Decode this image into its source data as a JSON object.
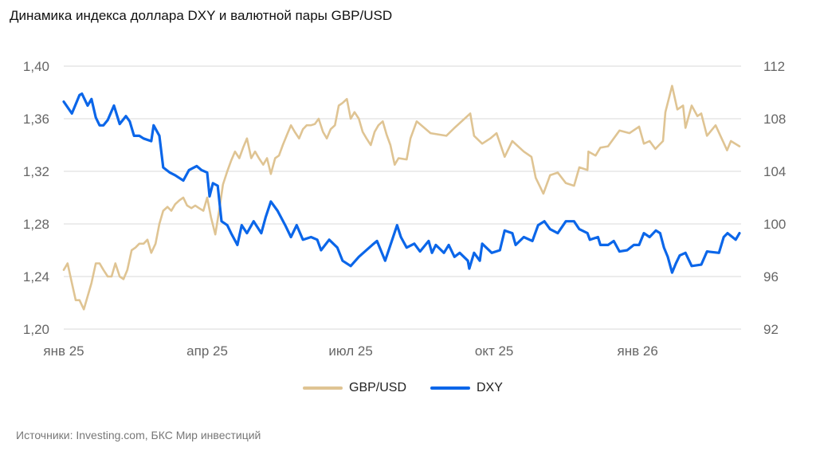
{
  "chart_data": {
    "type": "line",
    "title": "Динамика индекса доллара DXY и валютной пары GBP/USD",
    "x_unit": "months since January 2025",
    "x_ticks": [
      {
        "m": 0,
        "label": "янв 25"
      },
      {
        "m": 3,
        "label": "апр 25"
      },
      {
        "m": 6,
        "label": "июл 25"
      },
      {
        "m": 9,
        "label": "окт 25"
      },
      {
        "m": 12,
        "label": "янв 26"
      }
    ],
    "xlim": [
      0,
      14.13
    ],
    "y_left": {
      "ylim": [
        1.2,
        1.4
      ],
      "ticks": [
        "1,20",
        "1,24",
        "1,28",
        "1,32",
        "1,36",
        "1,40"
      ],
      "tick_values": [
        1.2,
        1.24,
        1.28,
        1.32,
        1.36,
        1.4
      ]
    },
    "y_right": {
      "ylim": [
        92,
        112
      ],
      "ticks": [
        "92",
        "96",
        "100",
        "104",
        "108",
        "112"
      ],
      "tick_values": [
        92,
        96,
        100,
        104,
        108,
        112
      ]
    },
    "grid": true,
    "legend_placement": "bottom-center",
    "series": [
      {
        "name": "GBP/USD",
        "axis": "left",
        "color": "#dfc493",
        "points": [
          [
            0,
            1.245
          ],
          [
            0.08,
            1.25
          ],
          [
            0.17,
            1.235
          ],
          [
            0.25,
            1.222
          ],
          [
            0.33,
            1.222
          ],
          [
            0.42,
            1.215
          ],
          [
            0.5,
            1.225
          ],
          [
            0.58,
            1.235
          ],
          [
            0.67,
            1.25
          ],
          [
            0.75,
            1.25
          ],
          [
            0.83,
            1.245
          ],
          [
            0.92,
            1.24
          ],
          [
            1,
            1.24
          ],
          [
            1.08,
            1.25
          ],
          [
            1.17,
            1.24
          ],
          [
            1.25,
            1.238
          ],
          [
            1.33,
            1.245
          ],
          [
            1.42,
            1.26
          ],
          [
            1.5,
            1.262
          ],
          [
            1.58,
            1.265
          ],
          [
            1.67,
            1.265
          ],
          [
            1.75,
            1.268
          ],
          [
            1.83,
            1.258
          ],
          [
            1.92,
            1.265
          ],
          [
            2,
            1.28
          ],
          [
            2.08,
            1.29
          ],
          [
            2.17,
            1.293
          ],
          [
            2.25,
            1.29
          ],
          [
            2.33,
            1.295
          ],
          [
            2.42,
            1.298
          ],
          [
            2.5,
            1.3
          ],
          [
            2.58,
            1.294
          ],
          [
            2.67,
            1.292
          ],
          [
            2.75,
            1.294
          ],
          [
            2.83,
            1.292
          ],
          [
            2.92,
            1.29
          ],
          [
            3,
            1.3
          ],
          [
            3.08,
            1.285
          ],
          [
            3.17,
            1.272
          ],
          [
            3.25,
            1.29
          ],
          [
            3.33,
            1.31
          ],
          [
            3.42,
            1.32
          ],
          [
            3.5,
            1.328
          ],
          [
            3.58,
            1.335
          ],
          [
            3.67,
            1.33
          ],
          [
            3.75,
            1.338
          ],
          [
            3.83,
            1.345
          ],
          [
            3.92,
            1.33
          ],
          [
            4,
            1.335
          ],
          [
            4.08,
            1.33
          ],
          [
            4.17,
            1.325
          ],
          [
            4.25,
            1.33
          ],
          [
            4.33,
            1.318
          ],
          [
            4.42,
            1.33
          ],
          [
            4.5,
            1.332
          ],
          [
            4.58,
            1.34
          ],
          [
            4.67,
            1.348
          ],
          [
            4.75,
            1.355
          ],
          [
            4.83,
            1.35
          ],
          [
            4.92,
            1.345
          ],
          [
            5,
            1.352
          ],
          [
            5.08,
            1.355
          ],
          [
            5.17,
            1.355
          ],
          [
            5.25,
            1.356
          ],
          [
            5.33,
            1.36
          ],
          [
            5.42,
            1.35
          ],
          [
            5.5,
            1.345
          ],
          [
            5.58,
            1.352
          ],
          [
            5.67,
            1.355
          ],
          [
            5.75,
            1.37
          ],
          [
            5.83,
            1.372
          ],
          [
            5.92,
            1.375
          ],
          [
            6,
            1.36
          ],
          [
            6.08,
            1.365
          ],
          [
            6.17,
            1.36
          ],
          [
            6.25,
            1.35
          ],
          [
            6.33,
            1.345
          ],
          [
            6.42,
            1.34
          ],
          [
            6.5,
            1.35
          ],
          [
            6.58,
            1.355
          ],
          [
            6.67,
            1.358
          ],
          [
            6.75,
            1.348
          ],
          [
            6.83,
            1.34
          ],
          [
            6.92,
            1.325
          ],
          [
            7,
            1.33
          ],
          [
            7.17,
            1.329
          ],
          [
            7.25,
            1.345
          ],
          [
            7.38,
            1.358
          ],
          [
            7.67,
            1.349
          ],
          [
            8,
            1.347
          ],
          [
            8.17,
            1.353
          ],
          [
            8.5,
            1.364
          ],
          [
            8.58,
            1.347
          ],
          [
            8.75,
            1.341
          ],
          [
            8.92,
            1.345
          ],
          [
            9.05,
            1.349
          ],
          [
            9.22,
            1.331
          ],
          [
            9.38,
            1.343
          ],
          [
            9.62,
            1.335
          ],
          [
            9.78,
            1.331
          ],
          [
            9.87,
            1.315
          ],
          [
            10.03,
            1.303
          ],
          [
            10.17,
            1.317
          ],
          [
            10.33,
            1.319
          ],
          [
            10.5,
            1.311
          ],
          [
            10.67,
            1.309
          ],
          [
            10.78,
            1.323
          ],
          [
            10.95,
            1.321
          ],
          [
            10.97,
            1.335
          ],
          [
            11.12,
            1.332
          ],
          [
            11.22,
            1.338
          ],
          [
            11.38,
            1.339
          ],
          [
            11.62,
            1.351
          ],
          [
            11.83,
            1.349
          ],
          [
            12.03,
            1.354
          ],
          [
            12.13,
            1.341
          ],
          [
            12.25,
            1.343
          ],
          [
            12.37,
            1.337
          ],
          [
            12.53,
            1.343
          ],
          [
            12.58,
            1.365
          ],
          [
            12.72,
            1.385
          ],
          [
            12.83,
            1.367
          ],
          [
            12.95,
            1.37
          ],
          [
            13,
            1.353
          ],
          [
            13.13,
            1.37
          ],
          [
            13.25,
            1.362
          ],
          [
            13.33,
            1.364
          ],
          [
            13.45,
            1.347
          ],
          [
            13.63,
            1.355
          ],
          [
            13.87,
            1.336
          ],
          [
            13.95,
            1.343
          ],
          [
            14.13,
            1.339
          ]
        ]
      },
      {
        "name": "DXY",
        "axis": "right",
        "color": "#0b66e9",
        "points": [
          [
            0,
            109.3
          ],
          [
            0.17,
            108.4
          ],
          [
            0.33,
            109.8
          ],
          [
            0.38,
            109.9
          ],
          [
            0.5,
            109.0
          ],
          [
            0.58,
            109.5
          ],
          [
            0.67,
            108.1
          ],
          [
            0.75,
            107.5
          ],
          [
            0.83,
            107.5
          ],
          [
            0.92,
            107.9
          ],
          [
            1.05,
            109.0
          ],
          [
            1.17,
            107.6
          ],
          [
            1.3,
            108.2
          ],
          [
            1.38,
            107.8
          ],
          [
            1.47,
            106.7
          ],
          [
            1.58,
            106.7
          ],
          [
            1.67,
            106.5
          ],
          [
            1.83,
            106.3
          ],
          [
            1.88,
            107.5
          ],
          [
            2,
            106.7
          ],
          [
            2.08,
            104.3
          ],
          [
            2.22,
            103.9
          ],
          [
            2.33,
            103.7
          ],
          [
            2.5,
            103.3
          ],
          [
            2.62,
            104.1
          ],
          [
            2.78,
            104.4
          ],
          [
            2.88,
            104.1
          ],
          [
            3,
            103.9
          ],
          [
            3.05,
            102.1
          ],
          [
            3.12,
            103.1
          ],
          [
            3.22,
            102.9
          ],
          [
            3.3,
            100.2
          ],
          [
            3.42,
            99.9
          ],
          [
            3.5,
            99.3
          ],
          [
            3.63,
            98.4
          ],
          [
            3.72,
            99.9
          ],
          [
            3.83,
            99.3
          ],
          [
            3.97,
            100.2
          ],
          [
            4.13,
            99.3
          ],
          [
            4.22,
            100.5
          ],
          [
            4.33,
            101.7
          ],
          [
            4.47,
            101.0
          ],
          [
            4.63,
            99.9
          ],
          [
            4.75,
            99.0
          ],
          [
            4.87,
            99.9
          ],
          [
            5,
            98.8
          ],
          [
            5.17,
            99.0
          ],
          [
            5.3,
            98.8
          ],
          [
            5.38,
            98.0
          ],
          [
            5.55,
            98.8
          ],
          [
            5.72,
            98.2
          ],
          [
            5.83,
            97.2
          ],
          [
            6,
            96.8
          ],
          [
            6.17,
            97.5
          ],
          [
            6.45,
            98.4
          ],
          [
            6.55,
            98.7
          ],
          [
            6.72,
            97.2
          ],
          [
            6.97,
            99.9
          ],
          [
            7.05,
            99.0
          ],
          [
            7.17,
            98.2
          ],
          [
            7.33,
            98.5
          ],
          [
            7.45,
            97.9
          ],
          [
            7.63,
            98.7
          ],
          [
            7.7,
            97.8
          ],
          [
            7.78,
            98.4
          ],
          [
            7.95,
            97.8
          ],
          [
            8.05,
            98.4
          ],
          [
            8.17,
            97.5
          ],
          [
            8.28,
            97.8
          ],
          [
            8.45,
            97.2
          ],
          [
            8.48,
            96.6
          ],
          [
            8.58,
            97.8
          ],
          [
            8.7,
            97.2
          ],
          [
            8.75,
            98.5
          ],
          [
            8.95,
            97.8
          ],
          [
            9.12,
            98.0
          ],
          [
            9.22,
            99.5
          ],
          [
            9.38,
            99.3
          ],
          [
            9.45,
            98.4
          ],
          [
            9.62,
            99.0
          ],
          [
            9.8,
            98.7
          ],
          [
            9.92,
            99.9
          ],
          [
            10.05,
            100.2
          ],
          [
            10.17,
            99.6
          ],
          [
            10.33,
            99.3
          ],
          [
            10.5,
            100.2
          ],
          [
            10.67,
            100.2
          ],
          [
            10.78,
            99.6
          ],
          [
            10.95,
            99.3
          ],
          [
            11,
            98.8
          ],
          [
            11.17,
            99.0
          ],
          [
            11.22,
            98.4
          ],
          [
            11.38,
            98.4
          ],
          [
            11.5,
            98.7
          ],
          [
            11.62,
            97.9
          ],
          [
            11.78,
            98.0
          ],
          [
            11.92,
            98.4
          ],
          [
            12.03,
            98.4
          ],
          [
            12.13,
            99.3
          ],
          [
            12.25,
            99.0
          ],
          [
            12.38,
            99.5
          ],
          [
            12.47,
            99.3
          ],
          [
            12.55,
            98.2
          ],
          [
            12.63,
            97.5
          ],
          [
            12.72,
            96.3
          ],
          [
            12.8,
            97.0
          ],
          [
            12.88,
            97.6
          ],
          [
            13,
            97.8
          ],
          [
            13.13,
            96.8
          ],
          [
            13.33,
            96.9
          ],
          [
            13.45,
            97.9
          ],
          [
            13.7,
            97.8
          ],
          [
            13.8,
            99.0
          ],
          [
            13.88,
            99.3
          ],
          [
            14.05,
            98.8
          ],
          [
            14.13,
            99.3
          ]
        ]
      }
    ],
    "legend": [
      "GBP/USD",
      "DXY"
    ],
    "source": "Источники: Investing.com, БКС Мир инвестиций"
  }
}
